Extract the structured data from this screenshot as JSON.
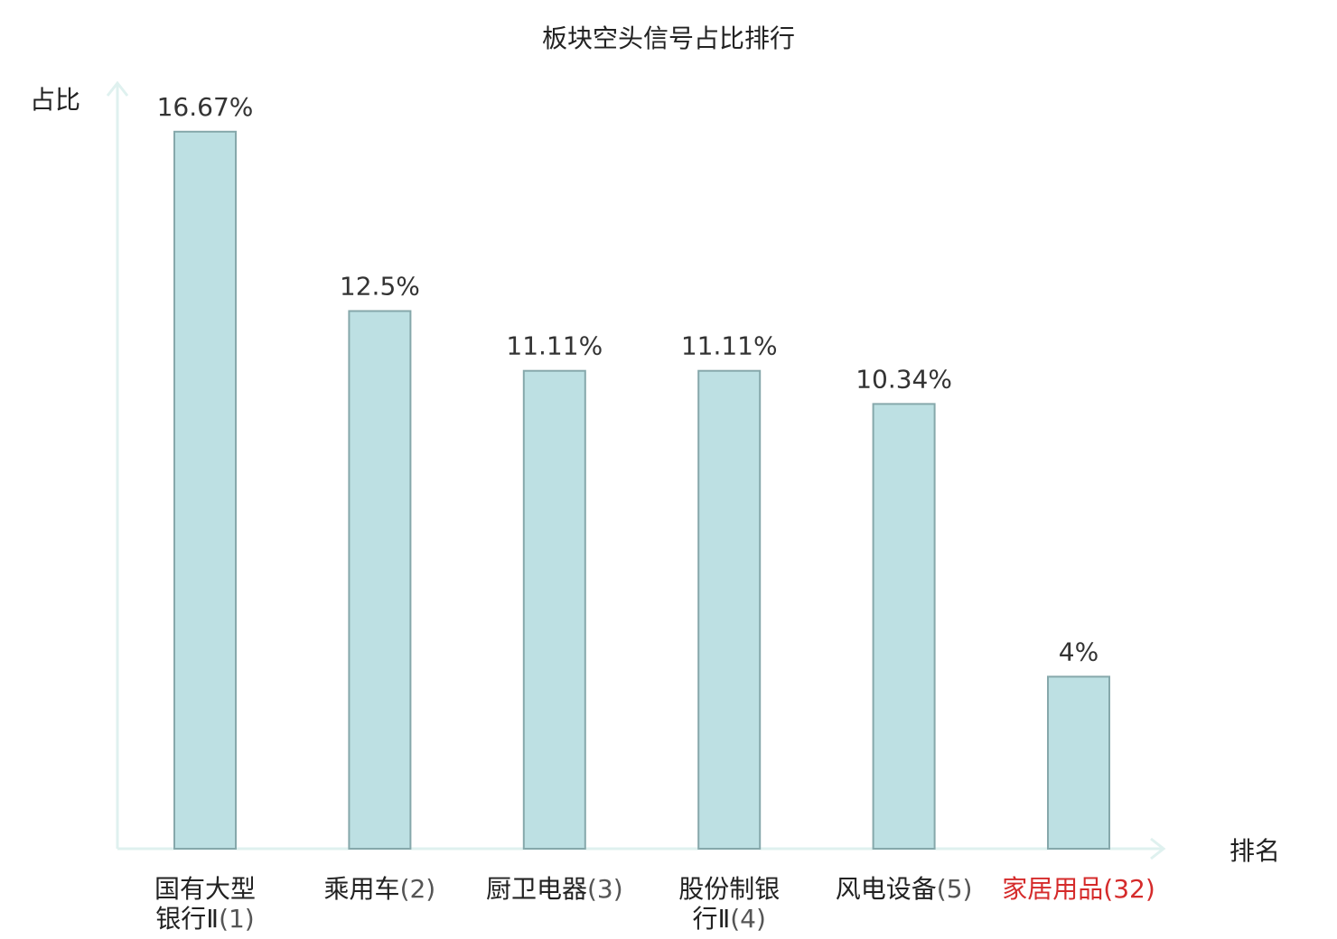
{
  "chart_data": {
    "type": "bar",
    "title": "板块空头信号占比排行",
    "ylabel": "占比",
    "xlabel": "排名",
    "ylim": [
      0,
      17.8
    ],
    "grid": false,
    "legend": "none",
    "value_suffix": "%",
    "categories": [
      "国有大型银行Ⅱ(1)",
      "乘用车(2)",
      "厨卫电器(3)",
      "股份制银行Ⅱ(4)",
      "风电设备(5)",
      "家居用品(32)"
    ],
    "category_lines": [
      [
        {
          "name": "国有大型",
          "num": ""
        },
        {
          "name": "银行Ⅱ",
          "num": "(1)"
        }
      ],
      [
        {
          "name": "乘用车",
          "num": "(2)"
        }
      ],
      [
        {
          "name": "厨卫电器",
          "num": "(3)"
        }
      ],
      [
        {
          "name": "股份制银",
          "num": ""
        },
        {
          "name": "行Ⅱ",
          "num": "(4)"
        }
      ],
      [
        {
          "name": "风电设备",
          "num": "(5)"
        }
      ],
      [
        {
          "name": "家居用品",
          "num": "(32)"
        }
      ]
    ],
    "values": [
      16.67,
      12.5,
      11.11,
      11.11,
      10.34,
      4
    ],
    "value_labels": [
      "16.67%",
      "12.5%",
      "11.11%",
      "11.11%",
      "10.34%",
      "4%"
    ],
    "highlight_index": 5
  },
  "colors": {
    "bar_fill": "#bde0e3",
    "bar_stroke": "#86a8ab",
    "axis": "#dff1ef",
    "highlight_text": "#d52b2b"
  }
}
